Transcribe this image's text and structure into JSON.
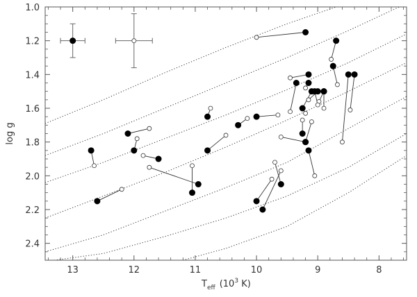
{
  "chart_data": {
    "type": "scatter",
    "x_reversed": true,
    "y_reversed": true,
    "xlim": [
      13.45,
      7.55
    ],
    "ylim": [
      1.0,
      2.5
    ],
    "x_ticks": [
      13,
      12,
      11,
      10,
      9,
      8
    ],
    "y_ticks": [
      1.0,
      1.2,
      1.4,
      1.6,
      1.8,
      2.0,
      2.2,
      2.4
    ],
    "x_tick_labels": [
      "13",
      "12",
      "11",
      "10",
      "9",
      "8"
    ],
    "y_tick_labels": [
      "1.0",
      "1.2",
      "1.4",
      "1.6",
      "1.8",
      "2.0",
      "2.2",
      "2.4"
    ],
    "xlabel_main": "T",
    "xlabel_sub": "eff",
    "xlabel_pre": "(10",
    "xlabel_sup": "3",
    "xlabel_post": " K)",
    "ylabel": "log g",
    "grid": false,
    "error_bars": [
      {
        "style": "filled",
        "x": 13.0,
        "y": 1.2,
        "xerr": 0.2,
        "yerr": 0.1
      },
      {
        "style": "open",
        "x": 12.0,
        "y": 1.2,
        "xerr": 0.3,
        "yerr": 0.16
      }
    ],
    "pairs": [
      {
        "filled": [
          9.2,
          1.15
        ],
        "open": [
          10.0,
          1.18
        ]
      },
      {
        "filled": [
          8.7,
          1.2
        ],
        "open": [
          8.78,
          1.31
        ]
      },
      {
        "filled": [
          8.75,
          1.35
        ],
        "open": [
          8.68,
          1.46
        ]
      },
      {
        "filled": [
          9.15,
          1.4
        ],
        "open": [
          9.45,
          1.42
        ]
      },
      {
        "filled": [
          9.15,
          1.45
        ],
        "open": [
          9.2,
          1.48
        ]
      },
      {
        "filled": [
          9.35,
          1.45
        ],
        "open": [
          9.45,
          1.62
        ]
      },
      {
        "filled": [
          8.5,
          1.4
        ],
        "open": [
          8.6,
          1.8
        ]
      },
      {
        "filled": [
          8.4,
          1.4
        ],
        "open": [
          8.47,
          1.61
        ]
      },
      {
        "filled": [
          9.1,
          1.5
        ],
        "open": [
          9.25,
          1.6
        ]
      },
      {
        "filled": [
          9.0,
          1.5
        ],
        "open": [
          9.15,
          1.55
        ]
      },
      {
        "filled": [
          8.9,
          1.5
        ],
        "open": [
          8.98,
          1.56
        ]
      },
      {
        "filled": [
          9.05,
          1.5
        ],
        "open": [
          9.0,
          1.58
        ]
      },
      {
        "filled": [
          8.9,
          1.5
        ],
        "open": [
          8.9,
          1.6
        ]
      },
      {
        "filled": [
          9.25,
          1.6
        ],
        "open": [
          9.2,
          1.63
        ]
      },
      {
        "filled": [
          10.0,
          1.65
        ],
        "open": [
          9.65,
          1.64
        ]
      },
      {
        "filled": [
          10.8,
          1.65
        ],
        "open": [
          10.75,
          1.6
        ]
      },
      {
        "filled": [
          10.3,
          1.7
        ],
        "open": [
          10.15,
          1.66
        ]
      },
      {
        "filled": [
          9.25,
          1.75
        ],
        "open": [
          9.25,
          1.67
        ]
      },
      {
        "filled": [
          9.2,
          1.8
        ],
        "open": [
          9.6,
          1.77
        ]
      },
      {
        "filled": [
          9.2,
          1.8
        ],
        "open": [
          9.1,
          1.68
        ]
      },
      {
        "filled": [
          12.1,
          1.75
        ],
        "open": [
          11.75,
          1.72
        ]
      },
      {
        "filled": [
          10.8,
          1.85
        ],
        "open": [
          10.5,
          1.76
        ]
      },
      {
        "filled": [
          12.0,
          1.85
        ],
        "open": [
          11.95,
          1.78
        ]
      },
      {
        "filled": [
          12.7,
          1.85
        ],
        "open": [
          12.65,
          1.94
        ]
      },
      {
        "filled": [
          11.6,
          1.9
        ],
        "open": [
          11.85,
          1.88
        ]
      },
      {
        "filled": [
          9.15,
          1.85
        ],
        "open": [
          9.05,
          2.0
        ]
      },
      {
        "filled": [
          10.95,
          2.05
        ],
        "open": [
          11.75,
          1.95
        ]
      },
      {
        "filled": [
          11.05,
          2.1
        ],
        "open": [
          11.05,
          1.94
        ]
      },
      {
        "filled": [
          9.6,
          2.05
        ],
        "open": [
          9.7,
          1.92
        ]
      },
      {
        "filled": [
          10.0,
          2.15
        ],
        "open": [
          9.75,
          2.02
        ]
      },
      {
        "filled": [
          9.9,
          2.2
        ],
        "open": [
          9.6,
          1.97
        ]
      },
      {
        "filled": [
          12.6,
          2.15
        ],
        "open": [
          12.2,
          2.08
        ]
      }
    ],
    "dotted_curves": [
      [
        [
          13.45,
          1.69
        ],
        [
          12.5,
          1.55
        ],
        [
          11.5,
          1.39
        ],
        [
          10.5,
          1.24
        ],
        [
          9.5,
          1.1
        ],
        [
          8.7,
          1.0
        ]
      ],
      [
        [
          13.45,
          1.88
        ],
        [
          12.5,
          1.75
        ],
        [
          11.5,
          1.6
        ],
        [
          10.5,
          1.45
        ],
        [
          9.5,
          1.3
        ],
        [
          8.5,
          1.14
        ],
        [
          7.55,
          0.98
        ]
      ],
      [
        [
          13.45,
          2.04
        ],
        [
          12.5,
          1.92
        ],
        [
          11.5,
          1.78
        ],
        [
          10.5,
          1.64
        ],
        [
          9.5,
          1.49
        ],
        [
          8.5,
          1.33
        ],
        [
          7.55,
          1.16
        ]
      ],
      [
        [
          13.45,
          2.25
        ],
        [
          12.5,
          2.12
        ],
        [
          11.5,
          1.98
        ],
        [
          10.5,
          1.83
        ],
        [
          9.5,
          1.67
        ],
        [
          8.5,
          1.5
        ],
        [
          7.55,
          1.33
        ]
      ],
      [
        [
          13.45,
          2.45
        ],
        [
          12.5,
          2.35
        ],
        [
          11.5,
          2.21
        ],
        [
          10.5,
          2.07
        ],
        [
          9.5,
          1.92
        ],
        [
          8.5,
          1.72
        ],
        [
          7.55,
          1.53
        ]
      ],
      [
        [
          13.3,
          2.5
        ],
        [
          12.5,
          2.46
        ],
        [
          11.5,
          2.36
        ],
        [
          10.5,
          2.25
        ],
        [
          9.5,
          2.12
        ],
        [
          8.5,
          1.95
        ],
        [
          7.55,
          1.75
        ]
      ],
      [
        [
          11.2,
          2.5
        ],
        [
          10.5,
          2.43
        ],
        [
          9.5,
          2.3
        ],
        [
          8.5,
          2.1
        ],
        [
          7.55,
          1.88
        ]
      ]
    ]
  }
}
